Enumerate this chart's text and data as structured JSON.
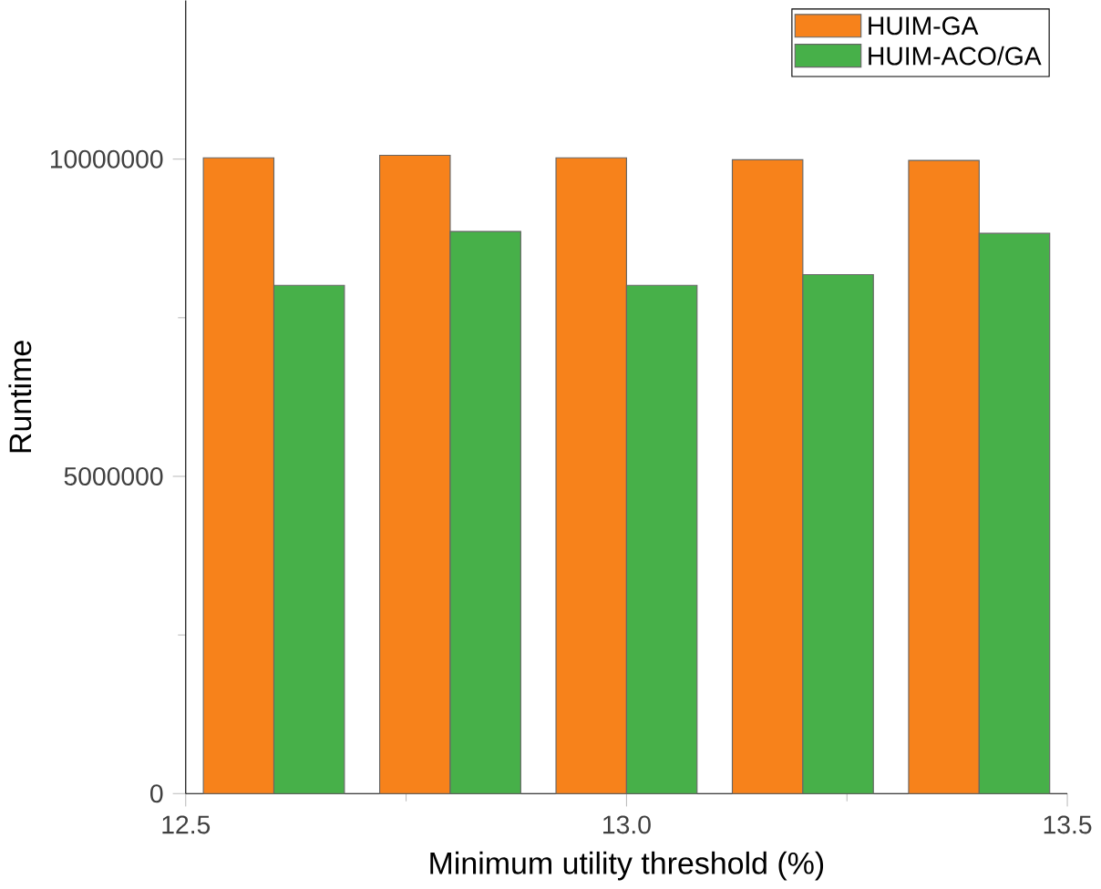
{
  "chart_data": {
    "type": "bar",
    "xlabel": "Minimum utility threshold (%)",
    "ylabel": "Runtime",
    "x": [
      12.6,
      12.8,
      13.0,
      13.2,
      13.4
    ],
    "series": [
      {
        "name": "HUIM-GA",
        "color": "#f7821b",
        "values": [
          10020000,
          10060000,
          10020000,
          9990000,
          9980000
        ]
      },
      {
        "name": "HUIM-ACO/GA",
        "color": "#47b049",
        "values": [
          8010000,
          8860000,
          8010000,
          8180000,
          8830000
        ]
      }
    ],
    "xlim": [
      12.5,
      13.5
    ],
    "xticks": [
      {
        "value": 12.5,
        "label": "12.5"
      },
      {
        "value": 13.0,
        "label": "13.0"
      },
      {
        "value": 13.5,
        "label": "13.5"
      }
    ],
    "ylim": [
      0,
      12500000
    ],
    "yticks": [
      0,
      5000000,
      10000000
    ],
    "grid": false,
    "legend": "top right"
  }
}
